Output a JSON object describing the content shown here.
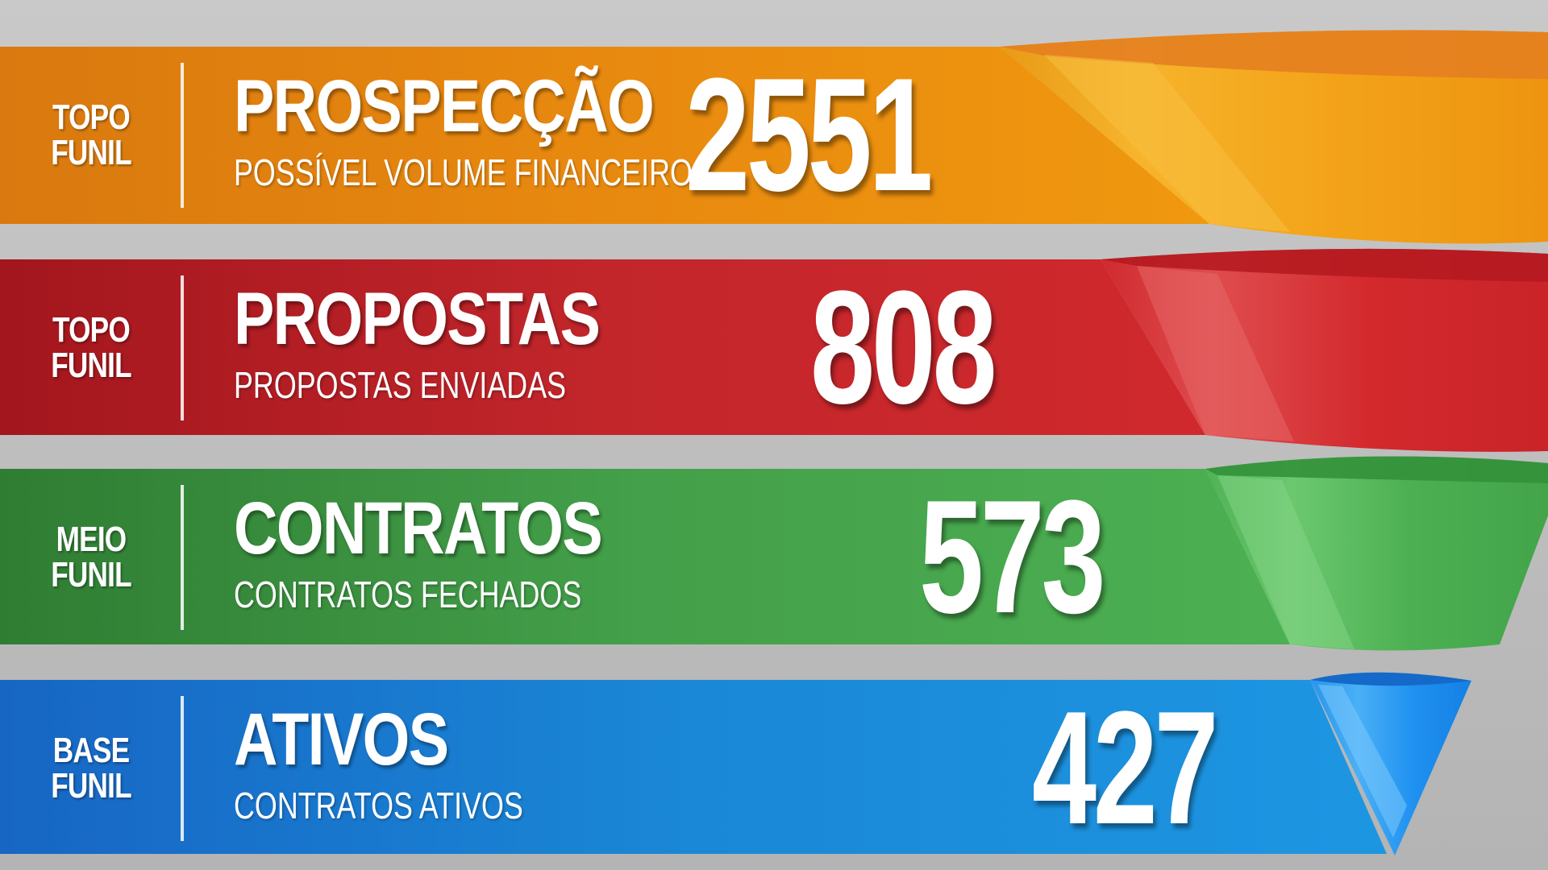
{
  "colors": {
    "prospeccao": "#e58a10",
    "propostas": "#c1272d",
    "contratos": "#46a04c",
    "ativos": "#1a8ad8"
  },
  "stages": [
    {
      "stage_label_line1": "TOPO",
      "stage_label_line2": "FUNIL",
      "title": "PROSPECÇÃO",
      "subtitle": "POSSÍVEL VOLUME FINANCEIRO",
      "value": "2551"
    },
    {
      "stage_label_line1": "TOPO",
      "stage_label_line2": "FUNIL",
      "title": "PROPOSTAS",
      "subtitle": "PROPOSTAS ENVIADAS",
      "value": "808"
    },
    {
      "stage_label_line1": "MEIO",
      "stage_label_line2": "FUNIL",
      "title": "CONTRATOS",
      "subtitle": "CONTRATOS FECHADOS",
      "value": "573"
    },
    {
      "stage_label_line1": "BASE",
      "stage_label_line2": "FUNIL",
      "title": "ATIVOS",
      "subtitle": "CONTRATOS ATIVOS",
      "value": "427"
    }
  ]
}
